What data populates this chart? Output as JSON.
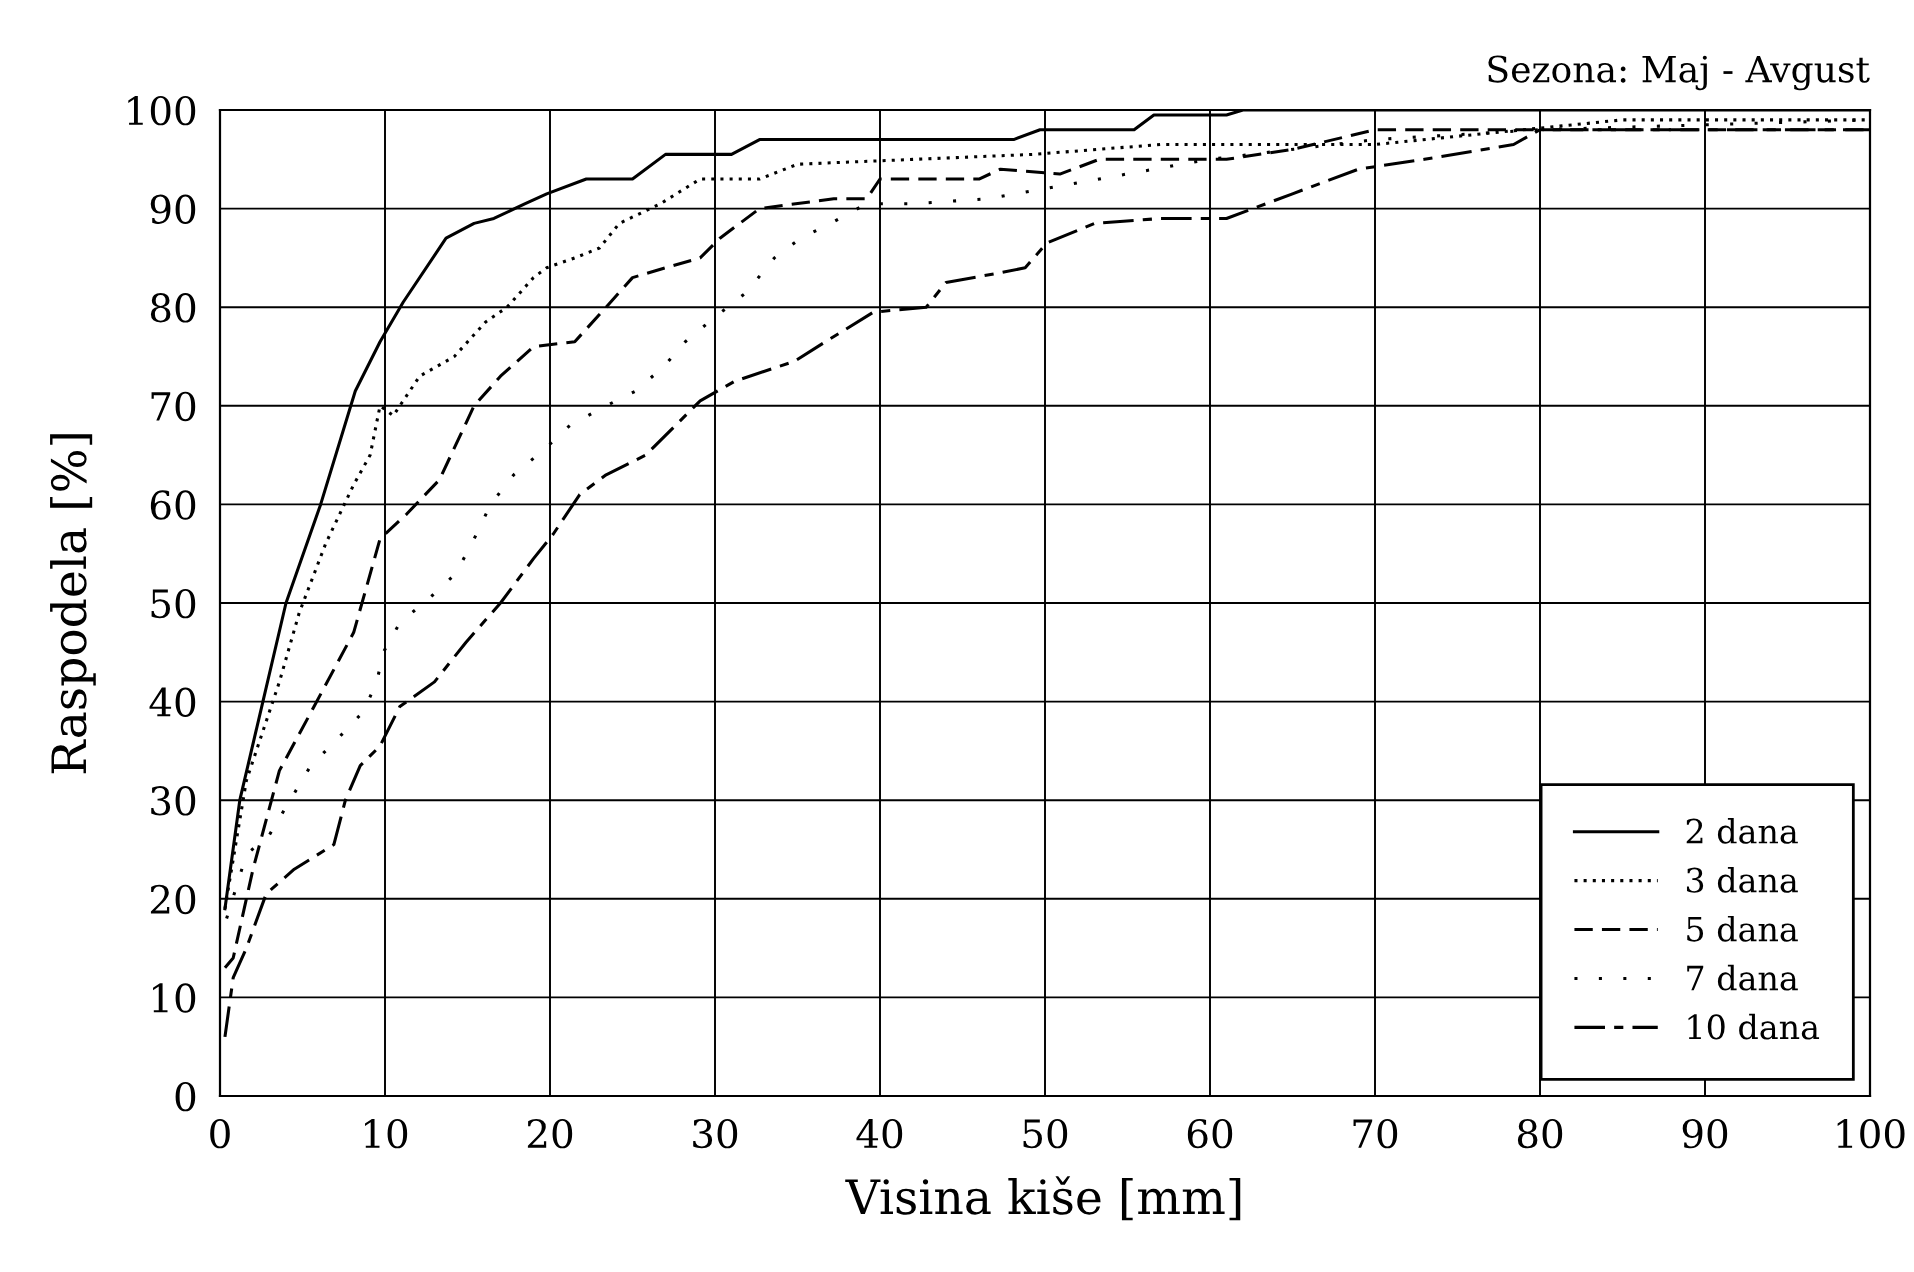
{
  "chart_data": {
    "type": "line",
    "title": "Sezona: Maj - Avgust",
    "xlabel": "Visina kiše [mm]",
    "ylabel": "Raspodela [%]",
    "xlim": [
      0,
      100
    ],
    "ylim": [
      0,
      100
    ],
    "xticks": [
      0,
      10,
      20,
      30,
      40,
      50,
      60,
      70,
      80,
      90,
      100
    ],
    "yticks": [
      0,
      10,
      20,
      30,
      40,
      50,
      60,
      70,
      80,
      90,
      100
    ],
    "grid": true,
    "legend": "bottom right",
    "marker": "none",
    "series": [
      {
        "name": "2 dana",
        "color": "#000000",
        "line_style": "solid",
        "x": [
          0.3,
          1.2,
          2.6,
          4,
          6.1,
          8.2,
          9.7,
          11.1,
          13.7,
          15.4,
          16.6,
          18.5,
          19.8,
          22.2,
          25,
          27,
          31,
          32.7,
          48.1,
          49.7,
          55.4,
          56.6,
          61,
          62,
          100
        ],
        "values": [
          19,
          30,
          40,
          50,
          60,
          71.5,
          76.5,
          80.5,
          87,
          88.5,
          89,
          90.5,
          91.5,
          93,
          93,
          95.5,
          95.5,
          97,
          97,
          98,
          98,
          99.5,
          99.5,
          100,
          100
        ]
      },
      {
        "name": "3 dana",
        "color": "#000000",
        "line_style": "dotted",
        "x": [
          0.3,
          1.6,
          3.6,
          4.8,
          6.4,
          8.1,
          9.1,
          9.7,
          10.5,
          12.1,
          14.2,
          16.1,
          17.4,
          19,
          19.8,
          21.5,
          23,
          24.2,
          26.7,
          29.1,
          32.7,
          35,
          49.3,
          57,
          70,
          85,
          100
        ],
        "values": [
          19,
          32,
          42,
          49,
          56,
          62,
          65,
          70,
          69,
          73,
          75,
          78.5,
          80,
          83,
          84,
          85,
          86,
          88.5,
          90.5,
          93,
          93,
          94.5,
          95.5,
          96.5,
          96.5,
          99,
          99
        ]
      },
      {
        "name": "5 dana",
        "color": "#000000",
        "line_style": "dashed",
        "x": [
          0.3,
          0.8,
          2,
          3.6,
          5.7,
          8.1,
          9.7,
          11.3,
          13.3,
          15.4,
          17,
          19,
          21.5,
          23.4,
          25,
          27,
          29.1,
          30.3,
          32.7,
          37.2,
          39.2,
          40,
          46,
          47.3,
          50.9,
          53.3,
          61,
          65,
          70,
          100
        ],
        "values": [
          13,
          14,
          23,
          33,
          39.5,
          47,
          56.5,
          59,
          62.5,
          70,
          73,
          76,
          76.5,
          80,
          83,
          84,
          85,
          87,
          90,
          91,
          91,
          93,
          93,
          94,
          93.5,
          95,
          95,
          96,
          98,
          98
        ]
      },
      {
        "name": "7 dana",
        "color": "#000000",
        "line_style": "loosely dotted",
        "x": [
          0.4,
          1.6,
          3,
          5.5,
          7,
          8.7,
          9.5,
          9.9,
          10.9,
          12.7,
          14.3,
          15.4,
          16.4,
          17.8,
          19.6,
          21.2,
          23.4,
          25.2,
          26.9,
          28.2,
          30,
          31.9,
          33.6,
          35.2,
          37,
          39.2,
          42.1,
          46.5,
          48.2,
          60,
          70,
          80,
          100
        ],
        "values": [
          18,
          24.5,
          26.5,
          33.5,
          36,
          39,
          42,
          45,
          48,
          50.5,
          53,
          56.5,
          60,
          63,
          65.5,
          68,
          70,
          71.5,
          74,
          76.5,
          79,
          81.5,
          85,
          87,
          88.5,
          90.5,
          90.5,
          91,
          91.5,
          95,
          97,
          98,
          99
        ]
      },
      {
        "name": "10 dana",
        "color": "#000000",
        "line_style": "dashdot",
        "x": [
          0.3,
          0.8,
          1.6,
          2.8,
          4.5,
          6.9,
          7.6,
          8.5,
          9.7,
          10.9,
          13,
          14.9,
          17,
          19,
          20.2,
          21.8,
          23.4,
          25.8,
          27.9,
          29.1,
          31.2,
          34.8,
          36.7,
          39.6,
          42.8,
          44,
          47.3,
          48.8,
          50.1,
          53,
          57,
          59.8,
          61,
          65,
          69,
          73,
          78.4,
          80,
          100
        ],
        "values": [
          6,
          12,
          15,
          20.5,
          23,
          25.5,
          30,
          33.5,
          35.5,
          39.5,
          42,
          46,
          50,
          54.5,
          57,
          61,
          63,
          65,
          68.5,
          70.5,
          72.5,
          74.5,
          76.5,
          79.5,
          80,
          82.5,
          83.5,
          84,
          86.5,
          88.5,
          89,
          89,
          89,
          91.5,
          94,
          95,
          96.5,
          98,
          98
        ]
      }
    ]
  }
}
